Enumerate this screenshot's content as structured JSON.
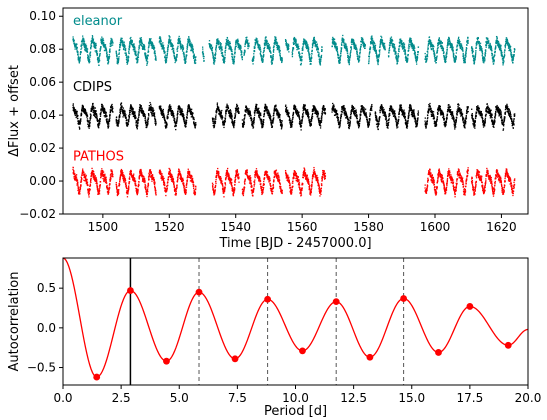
{
  "chart_data": [
    {
      "type": "scatter",
      "xlabel": "Time [BJD - 2457000.0]",
      "ylabel": "ΔFlux + offset",
      "xlim": [
        1488,
        1628
      ],
      "ylim": [
        -0.02,
        0.105
      ],
      "xticks": [
        1500,
        1520,
        1540,
        1560,
        1580,
        1600,
        1620
      ],
      "yticks": [
        -0.02,
        0.0,
        0.02,
        0.04,
        0.06,
        0.08,
        0.1
      ],
      "ytick_labels": [
        "−0.02",
        "0.00",
        "0.02",
        "0.04",
        "0.06",
        "0.08",
        "0.10"
      ],
      "grid": false,
      "period_days": 2.9,
      "series": [
        {
          "name": "eleanor",
          "color": "#008b8b",
          "offset": 0.08,
          "amplitude": 0.007,
          "segments": [
            [
              1491,
              1503
            ],
            [
              1504,
              1516
            ],
            [
              1517,
              1528
            ],
            [
              1530,
              1530.5
            ],
            [
              1532,
              1542
            ],
            [
              1542.5,
              1544
            ],
            [
              1545,
              1554
            ],
            [
              1555,
              1556
            ],
            [
              1557,
              1566
            ],
            [
              1569,
              1579
            ],
            [
              1580,
              1585
            ],
            [
              1586,
              1595
            ],
            [
              1597,
              1610
            ],
            [
              1611,
              1624
            ]
          ]
        },
        {
          "name": "CDIPS",
          "color": "#000000",
          "offset": 0.04,
          "amplitude": 0.006,
          "segments": [
            [
              1491,
              1503
            ],
            [
              1504,
              1516
            ],
            [
              1517,
              1528
            ],
            [
              1533,
              1541
            ],
            [
              1542,
              1554
            ],
            [
              1555,
              1567
            ],
            [
              1569,
              1581
            ],
            [
              1582,
              1595
            ],
            [
              1597,
              1610
            ],
            [
              1611,
              1624
            ]
          ]
        },
        {
          "name": "PATHOS",
          "color": "#ff0000",
          "offset": 0.0,
          "amplitude": 0.007,
          "segments": [
            [
              1491,
              1503
            ],
            [
              1504,
              1516
            ],
            [
              1517,
              1528
            ],
            [
              1533,
              1541
            ],
            [
              1542,
              1554
            ],
            [
              1555,
              1567
            ],
            [
              1597,
              1610
            ],
            [
              1611,
              1624
            ]
          ]
        }
      ]
    },
    {
      "type": "line",
      "xlabel": "Period [d]",
      "ylabel": "Autocorrelation",
      "xlim": [
        0.0,
        20.0
      ],
      "ylim": [
        -0.72,
        0.88
      ],
      "xticks": [
        0.0,
        2.5,
        5.0,
        7.5,
        10.0,
        12.5,
        15.0,
        17.5,
        20.0
      ],
      "xtick_labels": [
        "0.0",
        "2.5",
        "5.0",
        "7.5",
        "10.0",
        "12.5",
        "15.0",
        "17.5",
        "20.0"
      ],
      "yticks": [
        -0.5,
        0.0,
        0.5
      ],
      "ytick_labels": [
        "−0.5",
        "0.0",
        "0.5"
      ],
      "grid": false,
      "line_color": "#ff0000",
      "curve_extrema": [
        [
          0.0,
          0.88
        ],
        [
          1.45,
          -0.62
        ],
        [
          2.9,
          0.47
        ],
        [
          4.45,
          -0.42
        ],
        [
          5.85,
          0.45
        ],
        [
          7.4,
          -0.39
        ],
        [
          8.8,
          0.36
        ],
        [
          10.3,
          -0.29
        ],
        [
          11.75,
          0.33
        ],
        [
          13.2,
          -0.37
        ],
        [
          14.65,
          0.37
        ],
        [
          16.15,
          -0.31
        ],
        [
          17.5,
          0.27
        ],
        [
          19.15,
          -0.22
        ],
        [
          20.0,
          -0.02
        ]
      ],
      "marked_points": [
        [
          1.45,
          -0.62
        ],
        [
          2.9,
          0.47
        ],
        [
          4.45,
          -0.42
        ],
        [
          5.85,
          0.45
        ],
        [
          7.4,
          -0.39
        ],
        [
          8.8,
          0.36
        ],
        [
          10.3,
          -0.29
        ],
        [
          11.75,
          0.33
        ],
        [
          13.2,
          -0.37
        ],
        [
          14.65,
          0.37
        ],
        [
          16.15,
          -0.31
        ],
        [
          17.5,
          0.27
        ],
        [
          19.15,
          -0.22
        ]
      ],
      "solid_vline": 2.9,
      "dashed_vlines": [
        5.85,
        8.8,
        11.75,
        14.65
      ]
    }
  ]
}
